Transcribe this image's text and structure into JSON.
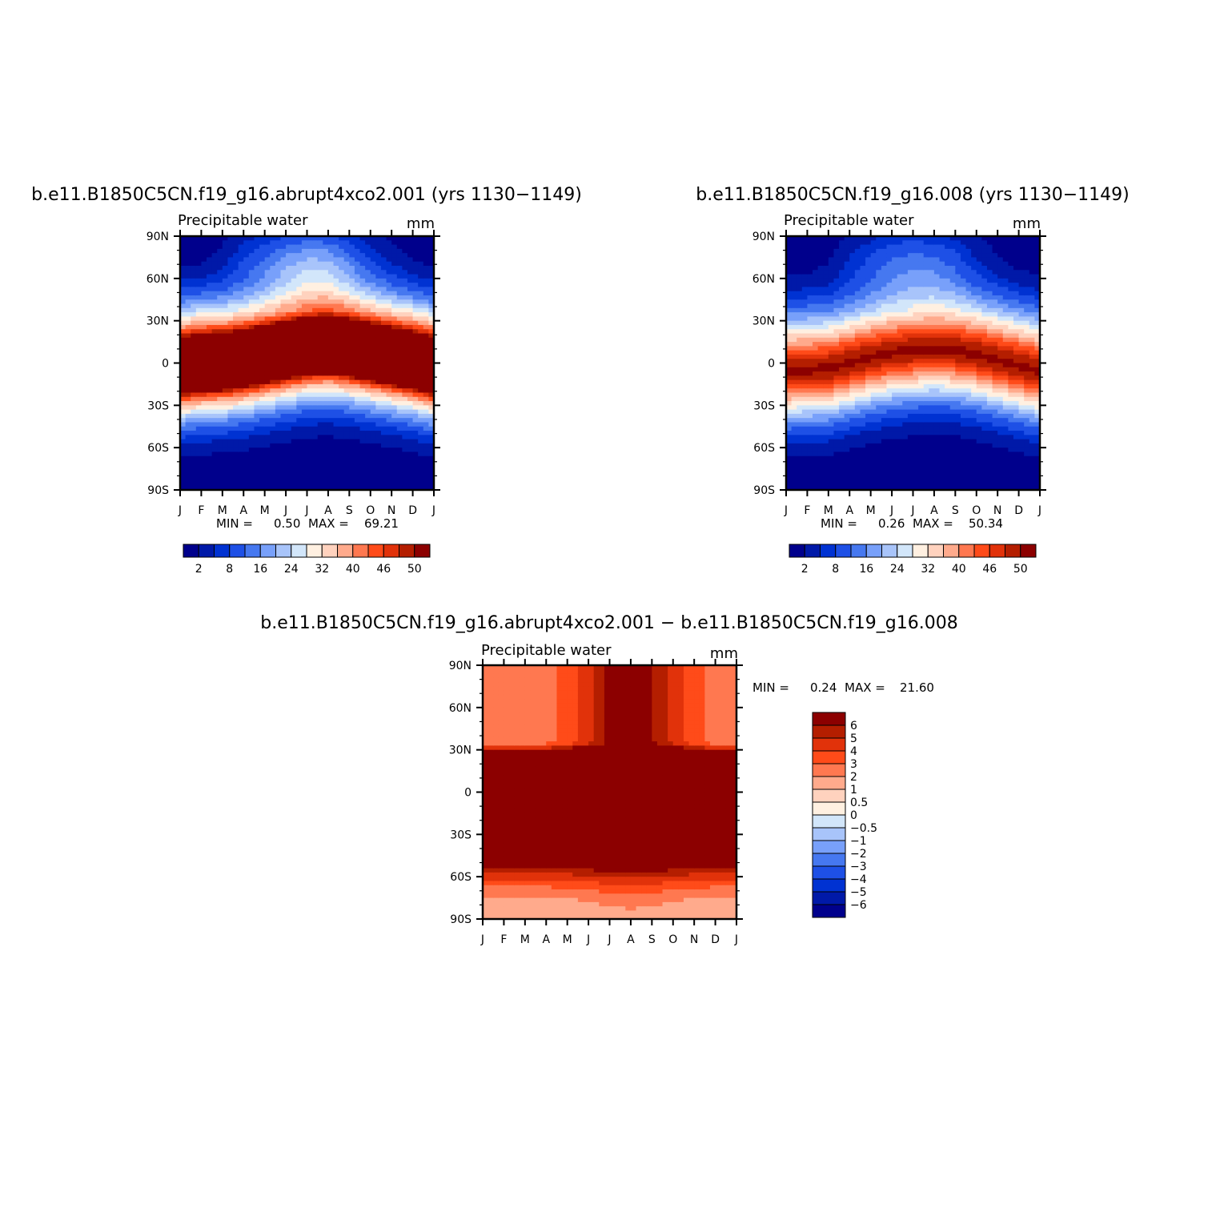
{
  "palettes": {
    "abs": [
      "#00008c",
      "#0019a8",
      "#0032d2",
      "#1e50e6",
      "#4678f0",
      "#78a0fa",
      "#a8c4fa",
      "#d2e6fa",
      "#fff0e1",
      "#ffd2be",
      "#ffaa8c",
      "#ff7850",
      "#ff4b19",
      "#e1320a",
      "#b41e00",
      "#8c0000"
    ],
    "diff": [
      "#00008c",
      "#0019a8",
      "#0032d2",
      "#1e50e6",
      "#4678f0",
      "#78a0fa",
      "#a8c4fa",
      "#d2e6fa",
      "#fff0e1",
      "#ffd2be",
      "#ffaa8c",
      "#ff7850",
      "#ff4b19",
      "#e1320a",
      "#b41e00",
      "#8c0000"
    ]
  },
  "chart_data": [
    {
      "type": "heatmap",
      "title": "b.e11.B1850C5CN.f19_g16.abrupt4xco2.001 (yrs 1130−1149)",
      "subtitle": "Precipitable water",
      "units": "mm",
      "x_ticks": [
        "J",
        "F",
        "M",
        "A",
        "M",
        "J",
        "J",
        "A",
        "S",
        "O",
        "N",
        "D",
        "J"
      ],
      "y_ticks": [
        "90N",
        "60N",
        "30N",
        "0",
        "30S",
        "60S",
        "90S"
      ],
      "y_range": [
        90,
        -90
      ],
      "stats": {
        "min_label": "MIN =",
        "min": "0.50",
        "max_label": "MAX =",
        "max": "69.21"
      },
      "colorbar": {
        "orientation": "horizontal",
        "levels": [
          "2",
          "8",
          "16",
          "24",
          "32",
          "40",
          "46",
          "50"
        ]
      },
      "field": {
        "peak": 69.2,
        "eq_lat": [
          -3,
          -1,
          0,
          2,
          5,
          8,
          11,
          12,
          10,
          7,
          4,
          1,
          -3
        ],
        "arctic_boost": [
          0,
          0,
          2,
          6,
          10,
          14,
          16,
          15,
          10,
          5,
          2,
          0,
          0
        ]
      }
    },
    {
      "type": "heatmap",
      "title": "b.e11.B1850C5CN.f19_g16.008 (yrs 1130−1149)",
      "subtitle": "Precipitable water",
      "units": "mm",
      "x_ticks": [
        "J",
        "F",
        "M",
        "A",
        "M",
        "J",
        "J",
        "A",
        "S",
        "O",
        "N",
        "D",
        "J"
      ],
      "y_ticks": [
        "90N",
        "60N",
        "30N",
        "0",
        "30S",
        "60S",
        "90S"
      ],
      "y_range": [
        90,
        -90
      ],
      "stats": {
        "min_label": "MIN =",
        "min": "0.26",
        "max_label": "MAX =",
        "max": "50.34"
      },
      "colorbar": {
        "orientation": "horizontal",
        "levels": [
          "2",
          "8",
          "16",
          "24",
          "32",
          "40",
          "46",
          "50"
        ]
      },
      "field": {
        "peak": 50.3,
        "eq_lat": [
          -6,
          -5,
          -4,
          0,
          4,
          7,
          9,
          10,
          9,
          6,
          2,
          -2,
          -6
        ],
        "arctic_boost": [
          0,
          0,
          1,
          4,
          7,
          10,
          11,
          10,
          7,
          3,
          1,
          0,
          0
        ]
      }
    },
    {
      "type": "heatmap",
      "title": "b.e11.B1850C5CN.f19_g16.abrupt4xco2.001 − b.e11.B1850C5CN.f19_g16.008",
      "subtitle": "Precipitable water",
      "units": "mm",
      "x_ticks": [
        "J",
        "F",
        "M",
        "A",
        "M",
        "J",
        "J",
        "A",
        "S",
        "O",
        "N",
        "D",
        "J"
      ],
      "y_ticks": [
        "90N",
        "60N",
        "30N",
        "0",
        "30S",
        "60S",
        "90S"
      ],
      "y_range": [
        90,
        -90
      ],
      "stats": {
        "min_label": "MIN =",
        "min": "0.24",
        "max_label": "MAX =",
        "max": "21.60"
      },
      "colorbar": {
        "orientation": "vertical",
        "levels": [
          "6",
          "5",
          "4",
          "3",
          "2",
          "1",
          "0.5",
          "0",
          "−0.5",
          "−1",
          "−2",
          "−3",
          "−4",
          "−5",
          "−6"
        ]
      },
      "field": {
        "peak": 21.6,
        "diff_levels": [
          -6,
          -5,
          -4,
          -3,
          -2,
          -1,
          -0.5,
          0,
          0.5,
          1,
          2,
          3,
          4,
          5,
          6
        ]
      }
    }
  ]
}
